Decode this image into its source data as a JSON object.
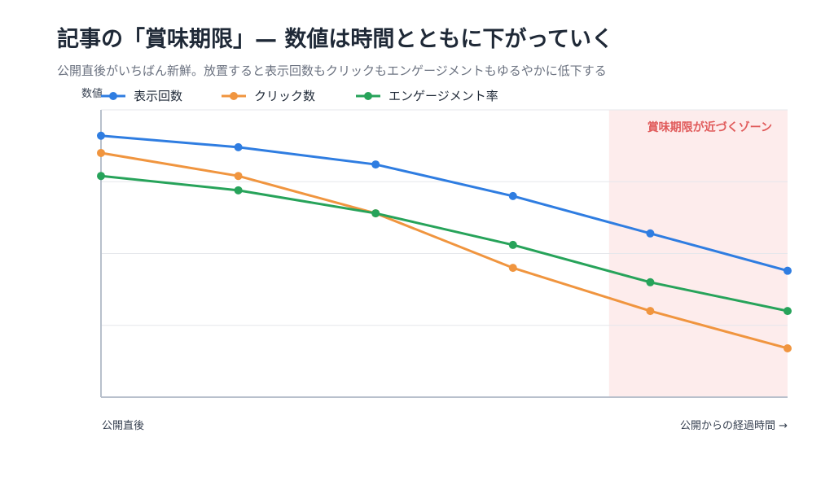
{
  "chart_data": {
    "type": "line",
    "title": "記事の「賞味期限」— 数値は時間とともに下がっていく",
    "subtitle": "公開直後がいちばん新鮮。放置すると表示回数もクリックもエンゲージメントもゆるやかに低下する",
    "ylabel": "数値",
    "x_start_label": "公開直後",
    "x_end_label": "公開からの経過時間 →",
    "x": [
      0,
      1,
      2,
      3,
      4,
      5
    ],
    "ylim": [
      0,
      100
    ],
    "grid": true,
    "legend_position": "top-left",
    "zone": {
      "label": "賞味期限が近づくゾーン",
      "x_start": 3.7,
      "x_end": 5,
      "color": "#fdecec"
    },
    "series": [
      {
        "name": "表示回数",
        "color": "#2f7de1",
        "values": [
          91,
          87,
          81,
          70,
          57,
          44
        ]
      },
      {
        "name": "クリック数",
        "color": "#f0953f",
        "values": [
          85,
          77,
          64,
          45,
          30,
          17
        ]
      },
      {
        "name": "エンゲージメント率",
        "color": "#27a35a",
        "values": [
          77,
          72,
          64,
          53,
          40,
          30
        ]
      }
    ]
  }
}
